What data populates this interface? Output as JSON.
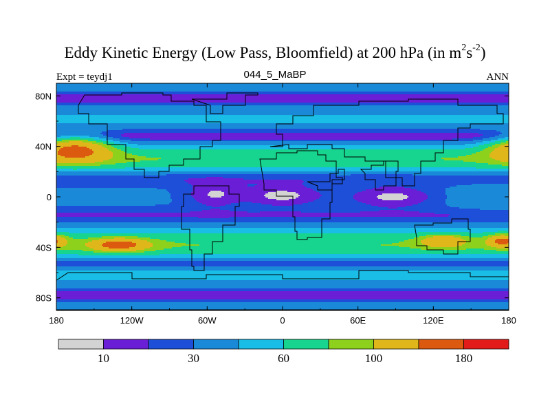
{
  "chart_data": {
    "type": "heatmap",
    "title_main": "Eddy Kinetic Energy (Low Pass, Bloomfield) at 200 hPa (in m",
    "title_sup1": "2",
    "title_mid": "s",
    "title_sup2": "-2",
    "title_end": ")",
    "subtitle": "044_5_MaBP",
    "left_label": "Expt = teydj1",
    "right_label": "ANN",
    "variable": "Eddy kinetic energy",
    "units": "m2 s-2",
    "x_range": [
      -180,
      180
    ],
    "y_range": [
      -90,
      90
    ],
    "x_ticks": [
      {
        "value": -180,
        "label": "180"
      },
      {
        "value": -120,
        "label": "120W"
      },
      {
        "value": -60,
        "label": "60W"
      },
      {
        "value": 0,
        "label": "0"
      },
      {
        "value": 60,
        "label": "60E"
      },
      {
        "value": 120,
        "label": "120E"
      },
      {
        "value": 180,
        "label": "180"
      }
    ],
    "y_ticks": [
      {
        "value": 80,
        "label": "80N"
      },
      {
        "value": 40,
        "label": "40N"
      },
      {
        "value": 0,
        "label": "0"
      },
      {
        "value": -40,
        "label": "40S"
      },
      {
        "value": -80,
        "label": "80S"
      }
    ],
    "levels": [
      0,
      10,
      20,
      30,
      45,
      60,
      80,
      100,
      140,
      180,
      240
    ],
    "level_colors": [
      "#d3d3d3",
      "#6a1ed6",
      "#1e4fd8",
      "#1a8ad8",
      "#19bde6",
      "#17d58e",
      "#8ed11c",
      "#dfb71a",
      "#dc5a10",
      "#e21a1a"
    ],
    "colorbar_labels": [
      {
        "boundary_index": 1,
        "label": "10"
      },
      {
        "boundary_index": 3,
        "label": "30"
      },
      {
        "boundary_index": 5,
        "label": "60"
      },
      {
        "boundary_index": 7,
        "label": "100"
      },
      {
        "boundary_index": 9,
        "label": "180"
      }
    ]
  }
}
